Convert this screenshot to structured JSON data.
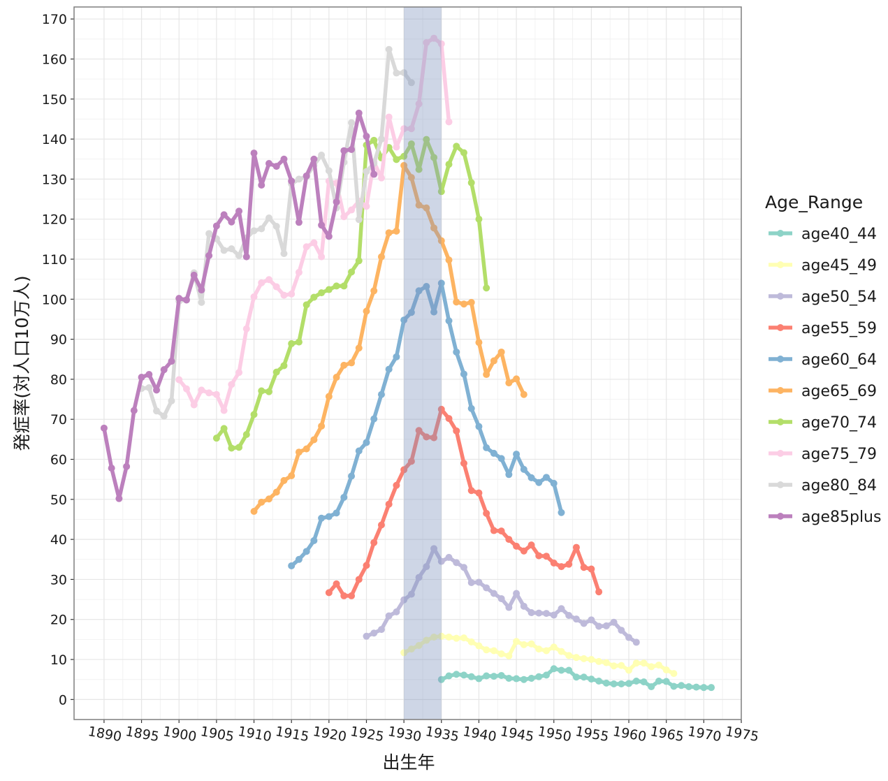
{
  "chart_data": {
    "type": "line",
    "x_label": "出生年",
    "y_label": "発症率(対人口10万人)",
    "legend_title": "Age_Range",
    "legend": "right",
    "grid": true,
    "xlim": [
      1886,
      1975
    ],
    "ylim": [
      -5,
      173
    ],
    "xticks": [
      1890,
      1895,
      1900,
      1905,
      1910,
      1915,
      1920,
      1925,
      1930,
      1935,
      1940,
      1945,
      1950,
      1955,
      1960,
      1965,
      1970,
      1975
    ],
    "yticks": [
      0,
      10,
      20,
      30,
      40,
      50,
      60,
      70,
      80,
      90,
      100,
      110,
      120,
      130,
      140,
      150,
      160,
      170
    ],
    "highlight": {
      "xmin": 1930,
      "xmax": 1935,
      "color": "#7f93bd"
    },
    "series": [
      {
        "name": "age40_44",
        "color": "#8DD3C7",
        "x": [
          1935,
          1936,
          1937,
          1938,
          1939,
          1940,
          1941,
          1942,
          1943,
          1944,
          1945,
          1946,
          1947,
          1948,
          1949,
          1950,
          1951,
          1952,
          1953,
          1954,
          1955,
          1956,
          1957,
          1958,
          1959,
          1960,
          1961,
          1962,
          1963,
          1964,
          1965,
          1966,
          1967,
          1968,
          1969,
          1970,
          1971
        ],
        "values": [
          5.0,
          5.9,
          6.3,
          6.1,
          5.7,
          5.2,
          5.9,
          5.8,
          6.0,
          5.3,
          5.2,
          5.0,
          5.3,
          5.7,
          6.1,
          7.7,
          7.3,
          7.3,
          5.6,
          5.6,
          5.1,
          4.6,
          4.1,
          3.9,
          3.9,
          4.0,
          4.6,
          4.4,
          3.2,
          4.6,
          4.5,
          3.3,
          3.5,
          3.2,
          3.1,
          3.0,
          3.0
        ]
      },
      {
        "name": "age45_49",
        "color": "#FFFFB3",
        "x": [
          1930,
          1931,
          1932,
          1933,
          1934,
          1935,
          1936,
          1937,
          1938,
          1939,
          1940,
          1941,
          1942,
          1943,
          1944,
          1945,
          1946,
          1947,
          1948,
          1949,
          1950,
          1951,
          1952,
          1953,
          1954,
          1955,
          1956,
          1957,
          1958,
          1959,
          1960,
          1961,
          1962,
          1963,
          1964,
          1965,
          1966
        ],
        "values": [
          11.7,
          12.6,
          13.5,
          14.8,
          15.6,
          15.8,
          15.6,
          15.3,
          15.4,
          14.4,
          13.4,
          12.4,
          12.2,
          11.4,
          10.9,
          14.5,
          13.7,
          13.9,
          12.6,
          12.2,
          13.1,
          12.0,
          11.0,
          10.5,
          10.2,
          10.0,
          9.5,
          9.2,
          8.4,
          8.5,
          7.3,
          9.1,
          9.1,
          8.2,
          8.6,
          7.4,
          6.5
        ]
      },
      {
        "name": "age50_54",
        "color": "#BEBADA",
        "x": [
          1925,
          1926,
          1927,
          1928,
          1929,
          1930,
          1931,
          1932,
          1933,
          1934,
          1935,
          1936,
          1937,
          1938,
          1939,
          1940,
          1941,
          1942,
          1943,
          1944,
          1945,
          1946,
          1947,
          1948,
          1949,
          1950,
          1951,
          1952,
          1953,
          1954,
          1955,
          1956,
          1957,
          1958,
          1959,
          1960,
          1961
        ],
        "values": [
          15.8,
          16.6,
          17.5,
          20.9,
          21.9,
          24.9,
          26.3,
          30.5,
          33.2,
          37.7,
          34.5,
          35.5,
          34.2,
          33.0,
          29.2,
          29.3,
          27.9,
          26.5,
          25.2,
          23.0,
          26.5,
          23.3,
          21.7,
          21.6,
          21.5,
          21.1,
          22.7,
          21.0,
          20.1,
          19.0,
          19.9,
          18.3,
          18.4,
          19.3,
          17.3,
          15.5,
          14.3
        ]
      },
      {
        "name": "age55_59",
        "color": "#FB8072",
        "x": [
          1920,
          1921,
          1922,
          1923,
          1924,
          1925,
          1926,
          1927,
          1928,
          1929,
          1930,
          1931,
          1932,
          1933,
          1934,
          1935,
          1936,
          1937,
          1938,
          1939,
          1940,
          1941,
          1942,
          1943,
          1944,
          1945,
          1946,
          1947,
          1948,
          1949,
          1950,
          1951,
          1952,
          1953,
          1954,
          1955,
          1956
        ],
        "values": [
          26.7,
          28.9,
          25.9,
          25.9,
          30.0,
          33.5,
          39.2,
          43.6,
          48.8,
          53.5,
          57.4,
          59.5,
          67.2,
          65.6,
          65.4,
          72.5,
          70.2,
          67.1,
          59.0,
          52.2,
          51.6,
          46.5,
          42.2,
          42.1,
          40.0,
          38.3,
          37.1,
          38.6,
          35.9,
          35.8,
          34.1,
          33.2,
          33.8,
          38.0,
          33.0,
          32.6,
          26.9
        ]
      },
      {
        "name": "age60_64",
        "color": "#80B1D3",
        "x": [
          1915,
          1916,
          1917,
          1918,
          1919,
          1920,
          1921,
          1922,
          1923,
          1924,
          1925,
          1926,
          1927,
          1928,
          1929,
          1930,
          1931,
          1932,
          1933,
          1934,
          1935,
          1936,
          1937,
          1938,
          1939,
          1940,
          1941,
          1942,
          1943,
          1944,
          1945,
          1946,
          1947,
          1948,
          1949,
          1950,
          1951
        ],
        "values": [
          33.4,
          35.0,
          37.0,
          39.7,
          45.3,
          45.7,
          46.6,
          50.5,
          55.8,
          62.1,
          64.2,
          70.1,
          76.2,
          82.5,
          85.6,
          94.8,
          96.7,
          102.1,
          103.2,
          96.8,
          104.0,
          94.6,
          86.8,
          81.3,
          72.7,
          68.2,
          62.9,
          61.5,
          60.2,
          56.2,
          61.3,
          57.5,
          55.4,
          54.2,
          55.5,
          54.0,
          46.7
        ]
      },
      {
        "name": "age65_69",
        "color": "#FDB462",
        "x": [
          1910,
          1911,
          1912,
          1913,
          1914,
          1915,
          1916,
          1917,
          1918,
          1919,
          1920,
          1921,
          1922,
          1923,
          1924,
          1925,
          1926,
          1927,
          1928,
          1929,
          1930,
          1931,
          1932,
          1933,
          1934,
          1935,
          1936,
          1937,
          1938,
          1939,
          1940,
          1941,
          1942,
          1943,
          1944,
          1945,
          1946
        ],
        "values": [
          47.0,
          49.3,
          50.1,
          51.8,
          54.7,
          55.9,
          61.8,
          62.6,
          64.9,
          68.3,
          75.7,
          80.5,
          83.5,
          84.1,
          87.8,
          97.0,
          102.1,
          110.6,
          116.6,
          117.0,
          133.4,
          130.4,
          123.5,
          122.8,
          117.8,
          114.6,
          109.8,
          99.3,
          98.8,
          99.2,
          89.2,
          81.2,
          84.6,
          86.8,
          79.1,
          80.1,
          76.2
        ]
      },
      {
        "name": "age70_74",
        "color": "#B3DE69",
        "x": [
          1905,
          1906,
          1907,
          1908,
          1909,
          1910,
          1911,
          1912,
          1913,
          1914,
          1915,
          1916,
          1917,
          1918,
          1919,
          1920,
          1921,
          1922,
          1923,
          1924,
          1925,
          1926,
          1927,
          1928,
          1929,
          1930,
          1931,
          1932,
          1933,
          1934,
          1935,
          1936,
          1937,
          1938,
          1939,
          1940,
          1941
        ],
        "values": [
          65.3,
          67.7,
          62.8,
          63.0,
          66.2,
          71.2,
          77.1,
          76.9,
          81.8,
          83.4,
          88.9,
          89.3,
          98.6,
          100.5,
          101.6,
          102.4,
          103.3,
          103.3,
          106.8,
          109.6,
          138.5,
          139.7,
          135.3,
          137.9,
          134.9,
          135.7,
          138.8,
          132.4,
          139.9,
          135.4,
          126.9,
          133.7,
          138.2,
          136.6,
          129.1,
          120.0,
          102.8
        ]
      },
      {
        "name": "age75_79",
        "color": "#FCCDE5",
        "x": [
          1900,
          1901,
          1902,
          1903,
          1904,
          1905,
          1906,
          1907,
          1908,
          1909,
          1910,
          1911,
          1912,
          1913,
          1914,
          1915,
          1916,
          1917,
          1918,
          1919,
          1920,
          1921,
          1922,
          1923,
          1924,
          1925,
          1926,
          1927,
          1928,
          1929,
          1930,
          1931,
          1932,
          1933,
          1934,
          1935,
          1936
        ],
        "values": [
          79.9,
          77.6,
          73.6,
          77.3,
          76.6,
          76.2,
          72.2,
          78.7,
          81.7,
          92.6,
          100.6,
          104.1,
          104.9,
          103.1,
          101.0,
          101.3,
          106.7,
          113.1,
          114.1,
          110.6,
          129.5,
          129.0,
          120.6,
          122.3,
          124.5,
          123.2,
          134.3,
          130.3,
          145.5,
          138.0,
          142.6,
          142.6,
          148.8,
          164.1,
          165.2,
          163.8,
          144.3
        ]
      },
      {
        "name": "age80_84",
        "color": "#D9D9D9",
        "x": [
          1895,
          1896,
          1897,
          1898,
          1899,
          1900,
          1901,
          1902,
          1903,
          1904,
          1905,
          1906,
          1907,
          1908,
          1909,
          1910,
          1911,
          1912,
          1913,
          1914,
          1915,
          1916,
          1917,
          1918,
          1919,
          1920,
          1921,
          1922,
          1923,
          1924,
          1925,
          1926,
          1927,
          1928,
          1929,
          1930,
          1931
        ],
        "values": [
          77.7,
          77.9,
          72.1,
          70.8,
          74.6,
          99.5,
          99.9,
          106.6,
          99.2,
          116.4,
          115.1,
          112.2,
          112.6,
          110.9,
          115.3,
          117.1,
          117.6,
          120.3,
          118.2,
          111.4,
          128.8,
          130.0,
          130.6,
          133.5,
          136.0,
          132.1,
          122.8,
          134.2,
          144.1,
          119.9,
          131.9,
          133.9,
          140.0,
          162.4,
          156.5,
          156.6,
          154.1
        ]
      },
      {
        "name": "age85plus",
        "color": "#BC80BD",
        "x": [
          1890,
          1891,
          1892,
          1893,
          1894,
          1895,
          1896,
          1897,
          1898,
          1899,
          1900,
          1901,
          1902,
          1903,
          1904,
          1905,
          1906,
          1907,
          1908,
          1909,
          1910,
          1911,
          1912,
          1913,
          1914,
          1915,
          1916,
          1917,
          1918,
          1919,
          1920,
          1921,
          1922,
          1923,
          1924,
          1925,
          1926
        ],
        "values": [
          67.8,
          57.8,
          50.2,
          58.2,
          72.2,
          80.5,
          81.2,
          77.3,
          82.4,
          84.5,
          100.2,
          99.8,
          106.0,
          102.3,
          110.9,
          118.3,
          121.1,
          119.3,
          122.0,
          110.6,
          136.5,
          128.5,
          133.9,
          133.2,
          135.0,
          129.5,
          119.2,
          130.8,
          135.0,
          118.5,
          115.7,
          124.3,
          137.1,
          137.4,
          146.5,
          140.7,
          131.2
        ]
      }
    ]
  }
}
